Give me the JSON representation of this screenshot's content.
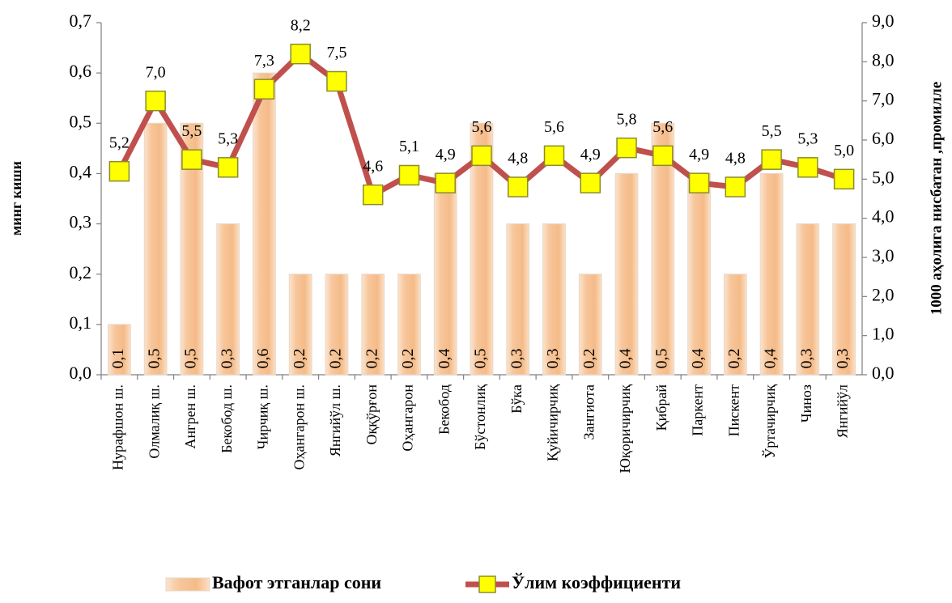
{
  "chart_data": {
    "type": "bar_line",
    "y_label": "минг киши",
    "y2_label": "1000 аҳолига нисбатан ,промилле",
    "categories": [
      "Нурафшон ш.",
      "Олмалиқ ш.",
      "Ангрен ш.",
      "Бекобод ш.",
      "Чирчиқ ш.",
      "Оҳангарон ш.",
      "Янгийўл ш.",
      "Оққўрғон",
      "Оҳангарон",
      "Бекобод",
      "Бўстонлиқ",
      "Бўка",
      "Қуйичирчиқ",
      "Зангиота",
      "Юқоричирчиқ",
      "Қибрай",
      "Паркент",
      "Пискент",
      "Ўртачирчиқ",
      "Чиноз",
      "Янгийўл"
    ],
    "series": [
      {
        "name": "Вафот этганлар сони",
        "type": "bar",
        "color": "#f7c69b",
        "values": [
          0.1,
          0.5,
          0.5,
          0.3,
          0.6,
          0.2,
          0.2,
          0.2,
          0.2,
          0.4,
          0.5,
          0.3,
          0.3,
          0.2,
          0.4,
          0.5,
          0.4,
          0.2,
          0.4,
          0.3,
          0.3
        ],
        "value_labels": [
          "0,1",
          "0,5",
          "0,5",
          "0,3",
          "0,6",
          "0,2",
          "0,2",
          "0,2",
          "0,2",
          "0,4",
          "0,5",
          "0,3",
          "0,3",
          "0,2",
          "0,4",
          "0,5",
          "0,4",
          "0,2",
          "0,4",
          "0,3",
          "0,3"
        ]
      },
      {
        "name": "Ўлим коэффициенти",
        "type": "line",
        "axis": "y2",
        "color": "#c0504d",
        "marker_color": "#ffff00",
        "values": [
          5.2,
          7.0,
          5.5,
          5.3,
          7.3,
          8.2,
          7.5,
          4.6,
          5.1,
          4.9,
          5.6,
          4.8,
          5.6,
          4.9,
          5.8,
          5.6,
          4.9,
          4.8,
          5.5,
          5.3,
          5.0
        ],
        "value_labels": [
          "5,2",
          "7,0",
          "5,5",
          "5,3",
          "7,3",
          "8,2",
          "7,5",
          "4,6",
          "5,1",
          "4,9",
          "5,6",
          "4,8",
          "5,6",
          "4,9",
          "5,8",
          "5,6",
          "4,9",
          "4,8",
          "5,5",
          "5,3",
          "5,0"
        ]
      }
    ],
    "ylim": [
      0,
      0.7
    ],
    "yticks": [
      {
        "value": 0,
        "label": "0,0"
      },
      {
        "value": 0.1,
        "label": "0,1"
      },
      {
        "value": 0.2,
        "label": "0,2"
      },
      {
        "value": 0.3,
        "label": "0,3"
      },
      {
        "value": 0.4,
        "label": "0,4"
      },
      {
        "value": 0.5,
        "label": "0,5"
      },
      {
        "value": 0.6,
        "label": "0,6"
      },
      {
        "value": 0.7,
        "label": "0,7"
      }
    ],
    "y2lim": [
      0,
      9
    ],
    "y2ticks": [
      {
        "value": 0,
        "label": "0,0"
      },
      {
        "value": 1,
        "label": "1,0"
      },
      {
        "value": 2,
        "label": "2,0"
      },
      {
        "value": 3,
        "label": "3,0"
      },
      {
        "value": 4,
        "label": "4,0"
      },
      {
        "value": 5,
        "label": "5,0"
      },
      {
        "value": 6,
        "label": "6,0"
      },
      {
        "value": 7,
        "label": "7,0"
      },
      {
        "value": 8,
        "label": "8,0"
      },
      {
        "value": 9,
        "label": "9,0"
      }
    ],
    "legend": "bottom"
  }
}
